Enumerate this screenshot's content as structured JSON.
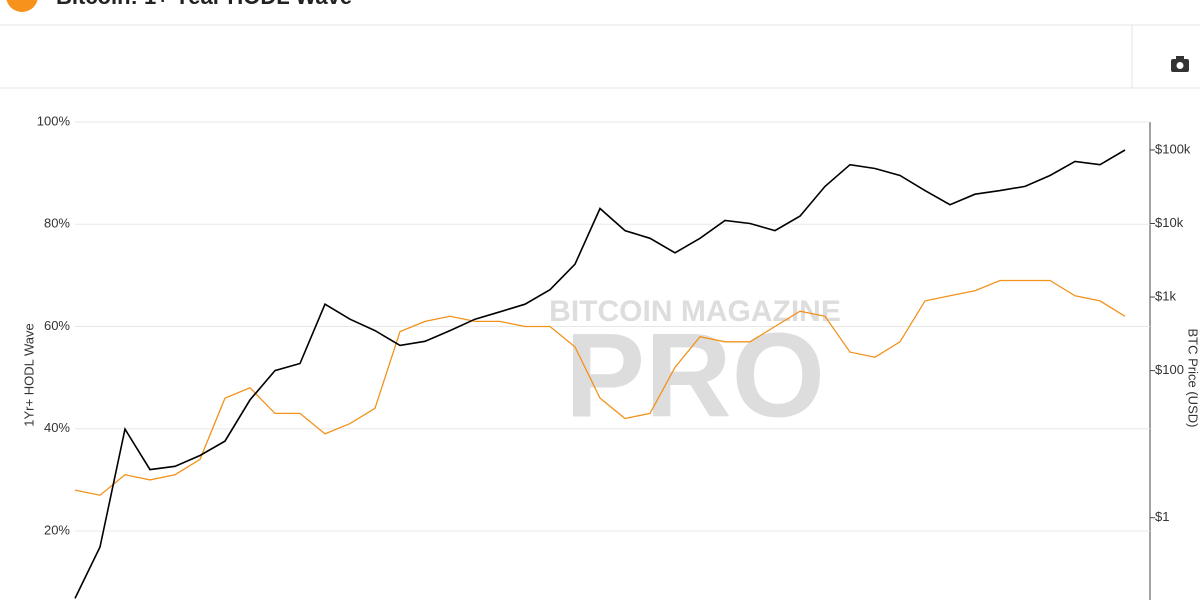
{
  "header": {
    "title": "Bitcoin: 1+ Year HODL Wave"
  },
  "chart_data": {
    "type": "line",
    "watermark": [
      "BITCOIN MAGAZINE",
      "PRO"
    ],
    "ylabel": "1Yr+ HODL Wave",
    "y2label": "BTC Price (USD)",
    "ylim": [
      6.5,
      100
    ],
    "yticks": [
      {
        "value": 20,
        "label": "20%"
      },
      {
        "value": 40,
        "label": "40%"
      },
      {
        "value": 60,
        "label": "60%"
      },
      {
        "value": 80,
        "label": "80%"
      },
      {
        "value": 100,
        "label": "100%"
      }
    ],
    "y2lim": [
      0.076,
      240000
    ],
    "y2log": true,
    "y2ticks": [
      {
        "value": 1,
        "label": "$1"
      },
      {
        "value": 100,
        "label": "$100"
      },
      {
        "value": 1000,
        "label": "$1k"
      },
      {
        "value": 10000,
        "label": "$10k"
      },
      {
        "value": 100000,
        "label": "$100k"
      }
    ],
    "grid": true,
    "series": [
      {
        "name": "1Yr+ HODL Wave",
        "color": "#f2921c",
        "axis": "y",
        "values": [
          28,
          27,
          31,
          30,
          31,
          34,
          46,
          48,
          43,
          43,
          39,
          41,
          44,
          59,
          61,
          62,
          61,
          61,
          60,
          60,
          56,
          46,
          42,
          43,
          52,
          58,
          57,
          57,
          60,
          63,
          62,
          55,
          54,
          57,
          65,
          66,
          67,
          69,
          69,
          69,
          66,
          65,
          62
        ]
      },
      {
        "name": "BTC Price",
        "color": "#000000",
        "axis": "y2",
        "values": [
          0.08,
          0.4,
          16,
          4.5,
          5,
          7,
          11,
          40,
          100,
          125,
          800,
          500,
          350,
          220,
          250,
          350,
          500,
          630,
          800,
          1260,
          2800,
          16000,
          8000,
          6300,
          4000,
          6300,
          11000,
          10000,
          8000,
          12600,
          32000,
          63000,
          56000,
          45000,
          28000,
          18000,
          25000,
          28000,
          32000,
          45000,
          70000,
          63000,
          100000
        ]
      }
    ]
  }
}
